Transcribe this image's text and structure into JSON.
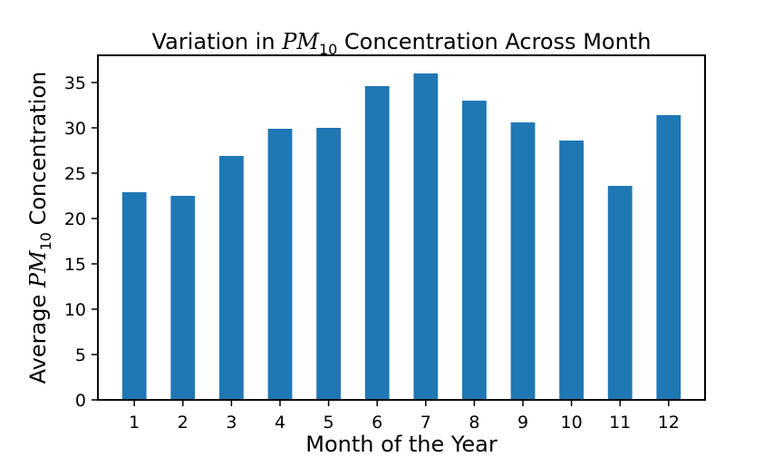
{
  "chart_data": {
    "type": "bar",
    "title": {
      "prefix": "Variation in ",
      "var": "PM",
      "sub": "10",
      "suffix": " Concentration Across Month"
    },
    "xlabel": "Month of the Year",
    "ylabel": {
      "prefix": "Average ",
      "var": "PM",
      "sub": "10",
      "suffix": " Concentration"
    },
    "categories": [
      "1",
      "2",
      "3",
      "4",
      "5",
      "6",
      "7",
      "8",
      "9",
      "10",
      "11",
      "12"
    ],
    "values": [
      22.9,
      22.5,
      26.9,
      29.9,
      30.0,
      34.6,
      36.0,
      33.0,
      30.6,
      28.6,
      23.6,
      31.4
    ],
    "ylim": [
      0,
      38
    ],
    "yticks": [
      0,
      5,
      10,
      15,
      20,
      25,
      30,
      35
    ],
    "bar_color": "#1f77b4",
    "grid": false,
    "legend": "none"
  }
}
